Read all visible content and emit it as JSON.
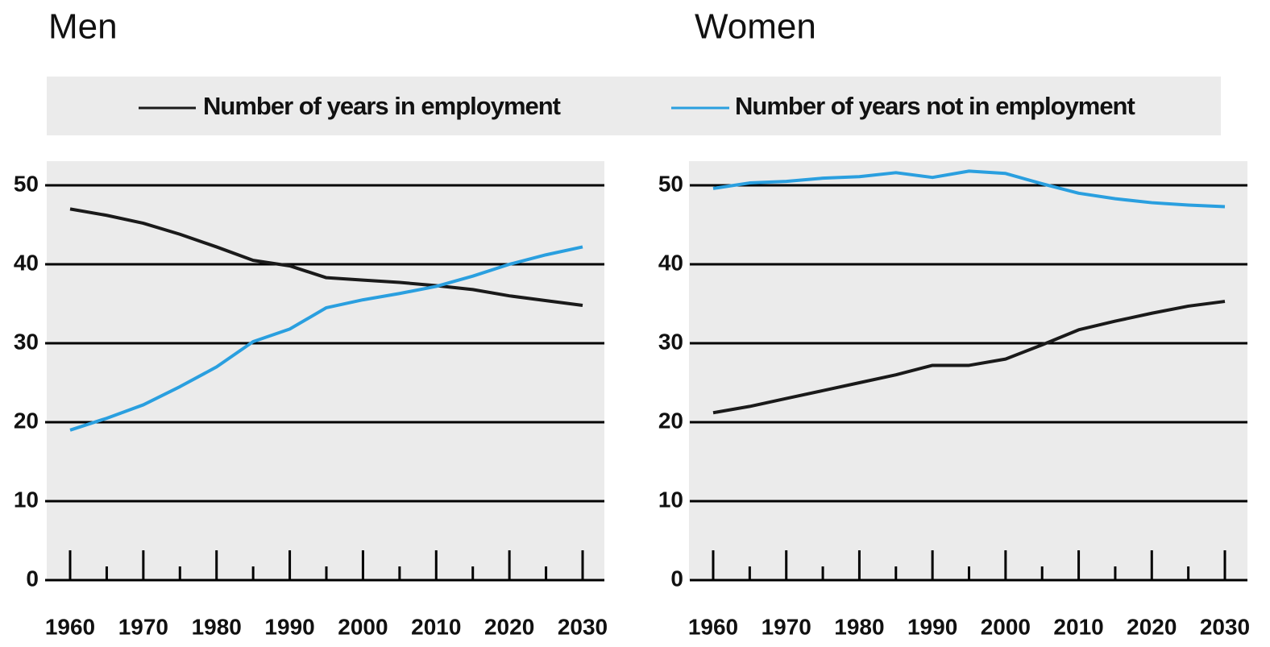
{
  "chart_data": [
    {
      "type": "line",
      "title": "Men",
      "x": [
        1960,
        1965,
        1970,
        1975,
        1980,
        1985,
        1990,
        1995,
        2000,
        2005,
        2010,
        2015,
        2020,
        2025,
        2030
      ],
      "series": [
        {
          "name": "Number of years in employment",
          "color": "#1a1a1a",
          "values": [
            47,
            46.2,
            45.2,
            43.8,
            42.2,
            40.5,
            39.8,
            38.3,
            38,
            37.7,
            37.3,
            36.8,
            36,
            35.4,
            34.8
          ]
        },
        {
          "name": "Number of years not in employment",
          "color": "#2a9fdf",
          "values": [
            19,
            20.5,
            22.2,
            24.5,
            27,
            30.2,
            31.8,
            34.5,
            35.5,
            36.3,
            37.2,
            38.5,
            40,
            41.2,
            42.2
          ]
        }
      ],
      "xlim": [
        1960,
        2030
      ],
      "xticks": [
        1960,
        1970,
        1980,
        1990,
        2000,
        2010,
        2020,
        2030
      ],
      "minor_xticks": [
        1965,
        1975,
        1985,
        1995,
        2005,
        2015,
        2025
      ],
      "ylim": [
        0,
        50
      ],
      "yticks": [
        0,
        10,
        20,
        30,
        40,
        50
      ],
      "grid": true
    },
    {
      "type": "line",
      "title": "Women",
      "x": [
        1960,
        1965,
        1970,
        1975,
        1980,
        1985,
        1990,
        1995,
        2000,
        2005,
        2010,
        2015,
        2020,
        2025,
        2030
      ],
      "series": [
        {
          "color": "#1a1a1a",
          "values": [
            21.2,
            22,
            23,
            24,
            25,
            26,
            27.2,
            27.2,
            28,
            29.8,
            31.7,
            32.8,
            33.8,
            34.7,
            35.3
          ]
        },
        {
          "color": "#2a9fdf",
          "values": [
            49.6,
            50.3,
            50.5,
            50.9,
            51.1,
            51.6,
            51,
            51.8,
            51.5,
            50.2,
            49,
            48.3,
            47.8,
            47.5,
            47.3
          ]
        }
      ],
      "xlim": [
        1960,
        2030
      ],
      "xticks": [
        1960,
        1970,
        1980,
        1990,
        2000,
        2010,
        2020,
        2030
      ],
      "minor_xticks": [
        1965,
        1975,
        1985,
        1995,
        2005,
        2015,
        2025
      ],
      "ylim": [
        0,
        50
      ],
      "yticks": [
        0,
        10,
        20,
        30,
        40,
        50
      ],
      "grid": true
    }
  ]
}
